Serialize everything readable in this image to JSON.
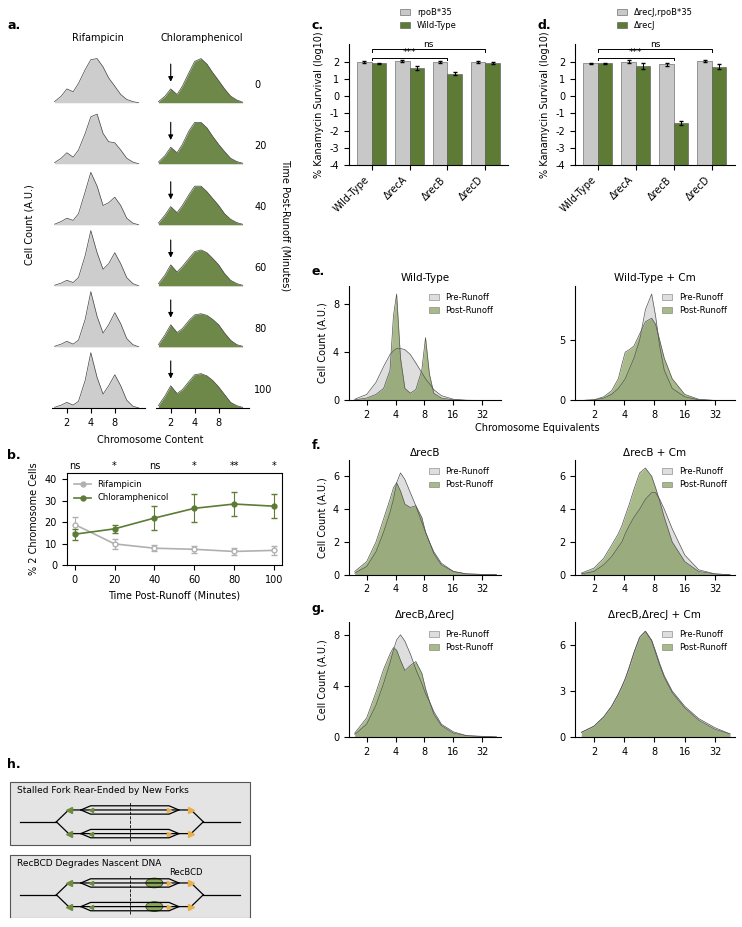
{
  "chart_data": [
    {
      "panel_label": "a.",
      "type": "density_grid",
      "log": "x",
      "xlabel": "Chromosome Content",
      "ylabel": "Cell Count (A.U.)",
      "time_label": "Time Post-Runoff (Minutes)",
      "times": [
        0,
        20,
        40,
        60,
        80,
        100
      ],
      "x": [
        1.4,
        1.7,
        2,
        2.4,
        2.8,
        3.4,
        4,
        4.8,
        5.7,
        6.7,
        8,
        9.5,
        11.3,
        13.5,
        16
      ],
      "xlim": [
        1.3,
        19
      ],
      "xticks": [
        2,
        4,
        8
      ],
      "ylim": [
        0,
        1.05
      ],
      "series": [
        {
          "name": "Rifampicin",
          "color": "#c8c8c8",
          "rows": [
            [
              0.02,
              0.12,
              0.25,
              0.2,
              0.35,
              0.6,
              0.78,
              0.8,
              0.65,
              0.45,
              0.3,
              0.15,
              0.06,
              0.02,
              0
            ],
            [
              0.02,
              0.1,
              0.2,
              0.12,
              0.25,
              0.55,
              0.85,
              0.9,
              0.55,
              0.4,
              0.38,
              0.25,
              0.1,
              0.03,
              0
            ],
            [
              0.01,
              0.06,
              0.12,
              0.08,
              0.2,
              0.6,
              0.95,
              0.7,
              0.35,
              0.4,
              0.5,
              0.35,
              0.12,
              0.03,
              0
            ],
            [
              0.01,
              0.05,
              0.1,
              0.06,
              0.15,
              0.55,
              1.0,
              0.6,
              0.3,
              0.4,
              0.6,
              0.4,
              0.15,
              0.04,
              0
            ],
            [
              0.01,
              0.05,
              0.1,
              0.05,
              0.12,
              0.5,
              1.0,
              0.55,
              0.25,
              0.4,
              0.62,
              0.42,
              0.15,
              0.04,
              0
            ],
            [
              0.01,
              0.05,
              0.1,
              0.05,
              0.12,
              0.5,
              1.0,
              0.55,
              0.25,
              0.4,
              0.6,
              0.4,
              0.14,
              0.03,
              0
            ]
          ]
        },
        {
          "name": "Chloramphenicol",
          "color": "#5d7b35",
          "arrow_at": 2,
          "rows": [
            [
              0.02,
              0.12,
              0.25,
              0.15,
              0.3,
              0.55,
              0.75,
              0.8,
              0.7,
              0.55,
              0.4,
              0.25,
              0.12,
              0.05,
              0.01
            ],
            [
              0.03,
              0.15,
              0.3,
              0.2,
              0.35,
              0.6,
              0.75,
              0.75,
              0.65,
              0.5,
              0.35,
              0.22,
              0.1,
              0.04,
              0.01
            ],
            [
              0.03,
              0.18,
              0.33,
              0.22,
              0.35,
              0.55,
              0.7,
              0.7,
              0.6,
              0.48,
              0.35,
              0.2,
              0.1,
              0.04,
              0.01
            ],
            [
              0.04,
              0.2,
              0.38,
              0.25,
              0.35,
              0.5,
              0.62,
              0.65,
              0.6,
              0.5,
              0.38,
              0.22,
              0.1,
              0.04,
              0.01
            ],
            [
              0.04,
              0.22,
              0.4,
              0.26,
              0.33,
              0.48,
              0.58,
              0.6,
              0.57,
              0.5,
              0.4,
              0.25,
              0.12,
              0.04,
              0.01
            ],
            [
              0.04,
              0.22,
              0.4,
              0.26,
              0.33,
              0.48,
              0.6,
              0.62,
              0.58,
              0.5,
              0.38,
              0.24,
              0.1,
              0.04,
              0.01
            ]
          ]
        }
      ]
    },
    {
      "panel_label": "b.",
      "type": "line",
      "xlabel": "Time Post-Runoff (Minutes)",
      "ylabel": "% 2 Chromosome Cells",
      "x": [
        0,
        20,
        40,
        60,
        80,
        100
      ],
      "xlim": [
        -4,
        104
      ],
      "xticks": [
        0,
        20,
        40,
        60,
        80,
        100
      ],
      "ylim": [
        0,
        43
      ],
      "yticks": [
        0,
        10,
        20,
        30,
        40
      ],
      "legend": "upper left",
      "sig_labels": [
        "ns",
        "*",
        "ns",
        "*",
        "**",
        "*"
      ],
      "series": [
        {
          "name": "Rifampicin",
          "color": "#b0b0b0",
          "marker": "o",
          "values": [
            19,
            10,
            8,
            7.5,
            6.5,
            7
          ],
          "errors": [
            3.5,
            2.5,
            1.5,
            1.5,
            1.5,
            2
          ]
        },
        {
          "name": "Chloramphenicol",
          "color": "#5d7b35",
          "marker": "o",
          "values": [
            14.5,
            17,
            22,
            26.5,
            28.5,
            27.5
          ],
          "errors": [
            2.5,
            2,
            5.5,
            6.5,
            5.5,
            5.5
          ]
        }
      ]
    },
    {
      "panel_label": "c.",
      "type": "bar",
      "ylabel": "% Kanamycin Survival (log10)",
      "categories": [
        "Wild-Type",
        "ΔrecA",
        "ΔrecB",
        "ΔrecD"
      ],
      "ylim": [
        -4,
        3
      ],
      "yticks": [
        -4,
        -3,
        -2,
        -1,
        0,
        1,
        2
      ],
      "legend": "upper center",
      "comparisons": [
        {
          "from": "Wild-Type",
          "to": "ΔrecB",
          "label": "***"
        },
        {
          "from": "Wild-Type",
          "to": "ΔrecD",
          "label": "ns"
        }
      ],
      "series": [
        {
          "name": "rpoB*35",
          "color": "#c8c8c8",
          "values": [
            2.0,
            2.05,
            2.0,
            2.0
          ],
          "errors": [
            0.05,
            0.07,
            0.06,
            0.07
          ]
        },
        {
          "name": "Wild-Type",
          "color": "#5d7b35",
          "values": [
            1.9,
            1.65,
            1.3,
            1.9
          ],
          "errors": [
            0.05,
            0.12,
            0.08,
            0.06
          ]
        }
      ]
    },
    {
      "panel_label": "d.",
      "type": "bar",
      "ylabel": "% Kanamycin Survival (log10)",
      "categories": [
        "Wild-Type",
        "ΔrecA",
        "ΔrecB",
        "ΔrecD"
      ],
      "ylim": [
        -4,
        3
      ],
      "yticks": [
        -4,
        -3,
        -2,
        -1,
        0,
        1,
        2
      ],
      "legend": "upper center",
      "comparisons": [
        {
          "from": "Wild-Type",
          "to": "ΔrecB",
          "label": "***"
        },
        {
          "from": "Wild-Type",
          "to": "ΔrecD",
          "label": "ns"
        }
      ],
      "series": [
        {
          "name": "ΔrecJ,rpoB*35",
          "color": "#c8c8c8",
          "values": [
            1.9,
            2.0,
            1.85,
            2.05
          ],
          "errors": [
            0.04,
            0.08,
            0.1,
            0.07
          ]
        },
        {
          "name": "ΔrecJ",
          "color": "#5d7b35",
          "values": [
            1.9,
            1.75,
            -1.55,
            1.7
          ],
          "errors": [
            0.05,
            0.15,
            0.1,
            0.15
          ]
        }
      ]
    },
    {
      "panel_label": "e.",
      "type": "density_overlay",
      "title": "Wild-Type",
      "log": "x",
      "xlabel": "Chromosome Equivalents",
      "ylabel": "Cell Count (A.U.)",
      "x": [
        1.5,
        2,
        2.5,
        3,
        3.5,
        3.8,
        4.1,
        4.5,
        5,
        5.7,
        6.5,
        7.5,
        8.2,
        9,
        10,
        12,
        16,
        22,
        32,
        45
      ],
      "xlim": [
        1.3,
        50
      ],
      "xticks": [
        2,
        4,
        8,
        16,
        32
      ],
      "ylim": [
        0,
        9.5
      ],
      "yticks": [
        0,
        4,
        8
      ],
      "legend": "upper right",
      "series": [
        {
          "name": "Pre-Runoff",
          "color": "#c8c8c8",
          "values": [
            0.1,
            0.5,
            1.5,
            2.8,
            3.8,
            4.1,
            4.3,
            4.3,
            4.2,
            3.8,
            3.1,
            2.3,
            1.8,
            1.4,
            0.9,
            0.4,
            0.1,
            0.02,
            0,
            0
          ]
        },
        {
          "name": "Post-Runoff",
          "color": "#6e8b3d",
          "values": [
            0.05,
            0.2,
            0.5,
            1.0,
            2.5,
            7.0,
            8.8,
            3.5,
            1.0,
            0.6,
            0.9,
            2.5,
            5.2,
            2.2,
            0.6,
            0.2,
            0.05,
            0,
            0,
            0
          ]
        }
      ]
    },
    {
      "type": "density_overlay",
      "title": "Wild-Type + Cm",
      "log": "x",
      "x": [
        1.5,
        2,
        2.5,
        3,
        3.5,
        3.8,
        4.1,
        4.5,
        5,
        5.7,
        6.5,
        7.5,
        8.2,
        9,
        10,
        12,
        16,
        22,
        32,
        45
      ],
      "xlim": [
        1.3,
        50
      ],
      "xticks": [
        2,
        4,
        8,
        16,
        32
      ],
      "ylim": [
        0,
        9.5
      ],
      "yticks": [
        0,
        5
      ],
      "legend": "upper right",
      "series": [
        {
          "name": "Pre-Runoff",
          "color": "#c8c8c8",
          "values": [
            0,
            0.05,
            0.2,
            0.5,
            1.0,
            1.4,
            1.8,
            2.6,
            3.5,
            5.0,
            7.5,
            8.8,
            7.0,
            4.5,
            2.5,
            1.0,
            0.3,
            0.05,
            0,
            0
          ]
        },
        {
          "name": "Post-Runoff",
          "color": "#6e8b3d",
          "values": [
            0,
            0.05,
            0.3,
            0.8,
            1.8,
            3.0,
            4.0,
            4.2,
            4.5,
            5.5,
            6.5,
            6.8,
            6.3,
            5.0,
            3.5,
            1.8,
            0.5,
            0.1,
            0,
            0
          ]
        }
      ]
    },
    {
      "panel_label": "f.",
      "type": "density_overlay",
      "title": "ΔrecB",
      "log": "x",
      "ylabel": "Cell Count (A.U.)",
      "x": [
        1.5,
        2,
        2.5,
        3,
        3.5,
        3.8,
        4.1,
        4.5,
        5,
        5.7,
        6.5,
        7.5,
        8.2,
        9,
        10,
        12,
        16,
        22,
        32,
        45
      ],
      "xlim": [
        1.3,
        50
      ],
      "xticks": [
        2,
        4,
        8,
        16,
        32
      ],
      "ylim": [
        0,
        7
      ],
      "yticks": [
        0,
        2,
        4,
        6
      ],
      "legend": "upper right",
      "series": [
        {
          "name": "Pre-Runoff",
          "color": "#c8c8c8",
          "values": [
            0.1,
            0.5,
            1.4,
            2.6,
            3.8,
            4.6,
            5.6,
            6.2,
            5.8,
            5.0,
            4.2,
            3.2,
            2.6,
            2.0,
            1.4,
            0.7,
            0.2,
            0.05,
            0.02,
            0
          ]
        },
        {
          "name": "Post-Runoff",
          "color": "#6e8b3d",
          "values": [
            0.2,
            0.8,
            2.0,
            3.4,
            4.6,
            5.3,
            5.6,
            5.1,
            4.3,
            4.1,
            4.2,
            3.5,
            2.6,
            2.0,
            1.3,
            0.6,
            0.2,
            0.05,
            0.02,
            0
          ]
        }
      ]
    },
    {
      "type": "density_overlay",
      "title": "ΔrecB + Cm",
      "log": "x",
      "x": [
        1.5,
        2,
        2.5,
        3,
        3.5,
        3.8,
        4.1,
        4.5,
        5,
        5.7,
        6.5,
        7.5,
        8.2,
        9,
        10,
        12,
        16,
        22,
        32,
        45
      ],
      "xlim": [
        1.3,
        50
      ],
      "xticks": [
        2,
        4,
        8,
        16,
        32
      ],
      "ylim": [
        0,
        7
      ],
      "yticks": [
        0,
        2,
        4,
        6
      ],
      "legend": "upper right",
      "series": [
        {
          "name": "Pre-Runoff",
          "color": "#c8c8c8",
          "values": [
            0.05,
            0.2,
            0.6,
            1.1,
            1.7,
            2.0,
            2.5,
            3.0,
            3.5,
            4.0,
            4.6,
            5.0,
            5.0,
            4.6,
            4.0,
            2.8,
            1.2,
            0.3,
            0.05,
            0
          ]
        },
        {
          "name": "Post-Runoff",
          "color": "#6e8b3d",
          "values": [
            0.1,
            0.4,
            1.0,
            1.8,
            2.5,
            3.0,
            3.6,
            4.3,
            5.2,
            6.2,
            6.5,
            6.0,
            5.3,
            4.5,
            3.5,
            2.0,
            0.8,
            0.2,
            0.05,
            0
          ]
        }
      ]
    },
    {
      "panel_label": "g.",
      "type": "density_overlay",
      "title": "ΔrecB,ΔrecJ",
      "log": "x",
      "ylabel": "Cell Count (A.U.)",
      "x": [
        1.5,
        2,
        2.5,
        3,
        3.5,
        3.8,
        4.1,
        4.5,
        5,
        5.7,
        6.5,
        7.5,
        8.2,
        9,
        10,
        12,
        16,
        22,
        32,
        45
      ],
      "xlim": [
        1.3,
        50
      ],
      "xticks": [
        2,
        4,
        8,
        16,
        32
      ],
      "ylim": [
        0,
        9
      ],
      "yticks": [
        0,
        4,
        8
      ],
      "legend": "upper right",
      "series": [
        {
          "name": "Pre-Runoff",
          "color": "#c8c8c8",
          "values": [
            0.2,
            1.0,
            2.5,
            4.2,
            5.8,
            6.8,
            7.6,
            8.0,
            7.5,
            6.5,
            5.3,
            4.2,
            3.4,
            2.8,
            2.0,
            1.0,
            0.4,
            0.1,
            0.05,
            0
          ]
        },
        {
          "name": "Post-Runoff",
          "color": "#6e8b3d",
          "values": [
            0.3,
            1.5,
            3.5,
            5.3,
            6.5,
            7.0,
            6.8,
            6.0,
            5.2,
            5.6,
            5.9,
            5.0,
            3.8,
            2.8,
            1.8,
            0.9,
            0.3,
            0.1,
            0.03,
            0
          ]
        }
      ]
    },
    {
      "type": "density_overlay",
      "title": "ΔrecB,ΔrecJ + Cm",
      "log": "x",
      "x": [
        1.5,
        2,
        2.5,
        3,
        3.5,
        3.8,
        4.1,
        4.5,
        5,
        5.7,
        6.5,
        7.5,
        8.2,
        9,
        10,
        12,
        16,
        22,
        32,
        45
      ],
      "xlim": [
        1.3,
        50
      ],
      "xticks": [
        2,
        4,
        8,
        16,
        32
      ],
      "ylim": [
        0,
        7.5
      ],
      "yticks": [
        0,
        3,
        6
      ],
      "legend": "upper right",
      "series": [
        {
          "name": "Pre-Runoff",
          "color": "#c8c8c8",
          "values": [
            0.3,
            0.7,
            1.3,
            2.0,
            2.8,
            3.3,
            3.8,
            4.6,
            5.5,
            6.5,
            6.9,
            6.3,
            5.6,
            4.8,
            4.0,
            3.0,
            2.0,
            1.2,
            0.6,
            0.2
          ]
        },
        {
          "name": "Post-Runoff",
          "color": "#6e8b3d",
          "values": [
            0.3,
            0.7,
            1.3,
            2.0,
            2.8,
            3.3,
            3.8,
            4.5,
            5.5,
            6.5,
            6.9,
            6.3,
            5.5,
            4.7,
            3.9,
            2.9,
            1.9,
            1.1,
            0.5,
            0.2
          ]
        }
      ]
    }
  ],
  "diagram": {
    "panel_label": "h.",
    "boxes": [
      {
        "title": "Stalled Fork Rear-Ended by New Forks"
      },
      {
        "title": "RecBCD Degrades Nascent DNA",
        "enzyme": "RecBCD"
      }
    ]
  }
}
